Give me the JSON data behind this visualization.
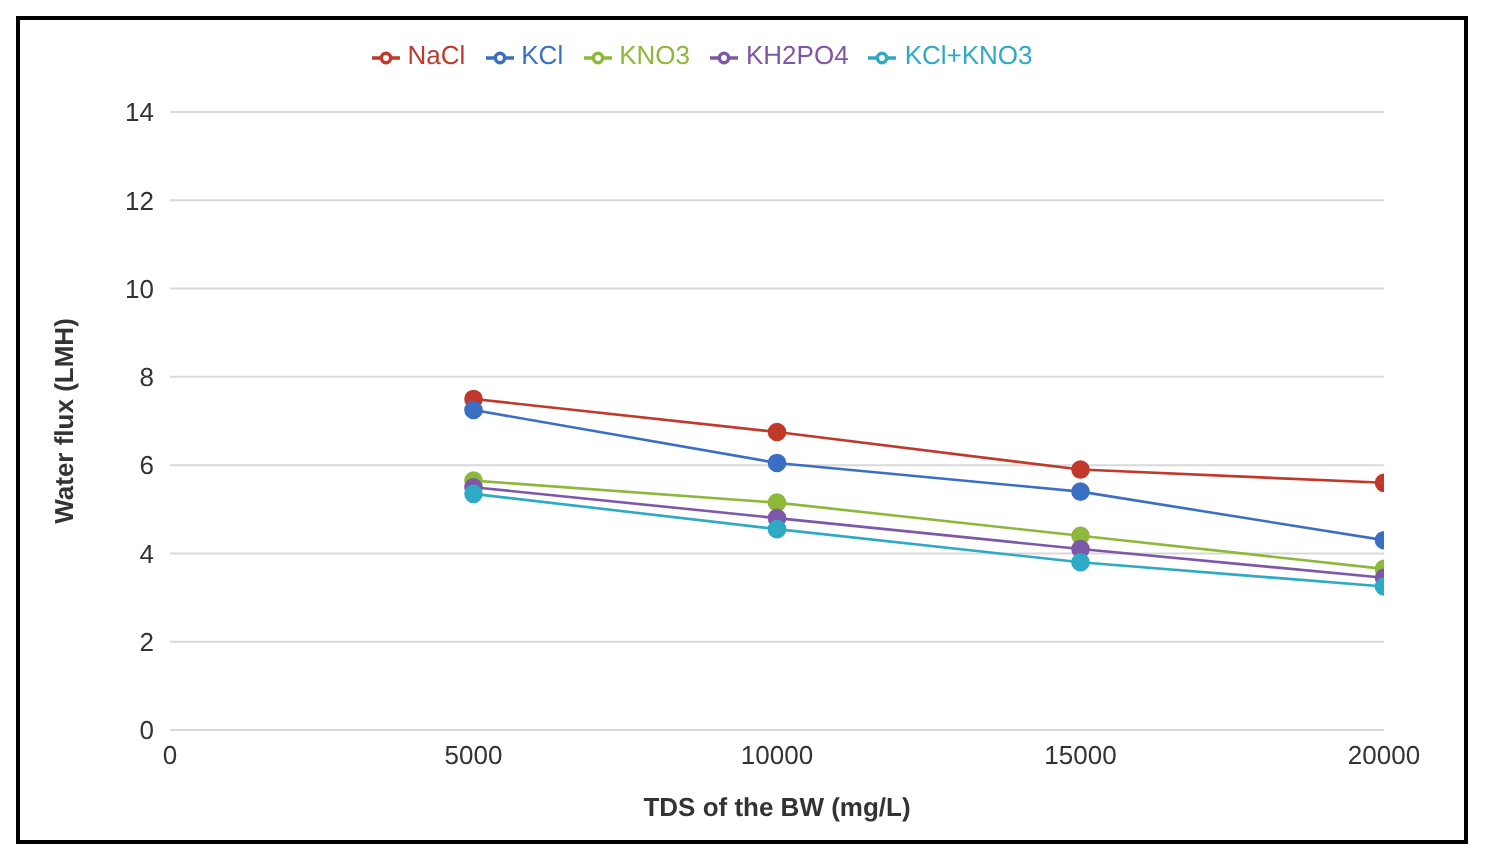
{
  "chart_data": {
    "type": "line",
    "xlabel": "TDS of the BW (mg/L)",
    "ylabel": "Water flux (LMH)",
    "x": [
      5000,
      10000,
      15000,
      20000
    ],
    "series": [
      {
        "name": "NaCl",
        "color": "#c0392b",
        "values": [
          7.5,
          6.75,
          5.9,
          5.6
        ]
      },
      {
        "name": "KCl",
        "color": "#3a6fc4",
        "values": [
          7.25,
          6.05,
          5.4,
          4.3
        ]
      },
      {
        "name": "KNO3",
        "color": "#8db83a",
        "values": [
          5.65,
          5.15,
          4.4,
          3.65
        ]
      },
      {
        "name": "KH2PO4",
        "color": "#7e57a8",
        "values": [
          5.5,
          4.8,
          4.1,
          3.45
        ]
      },
      {
        "name": "KCl+KNO3",
        "color": "#2eaac4",
        "values": [
          5.35,
          4.55,
          3.8,
          3.25
        ]
      }
    ],
    "xlim": [
      0,
      20000
    ],
    "xticks": [
      0,
      5000,
      10000,
      15000,
      20000
    ],
    "ylim": [
      0,
      14
    ],
    "yticks": [
      0,
      2,
      4,
      6,
      8,
      10,
      12,
      14
    ],
    "grid": "y",
    "legend": "top",
    "marker": "circle",
    "line_style": "solid"
  }
}
